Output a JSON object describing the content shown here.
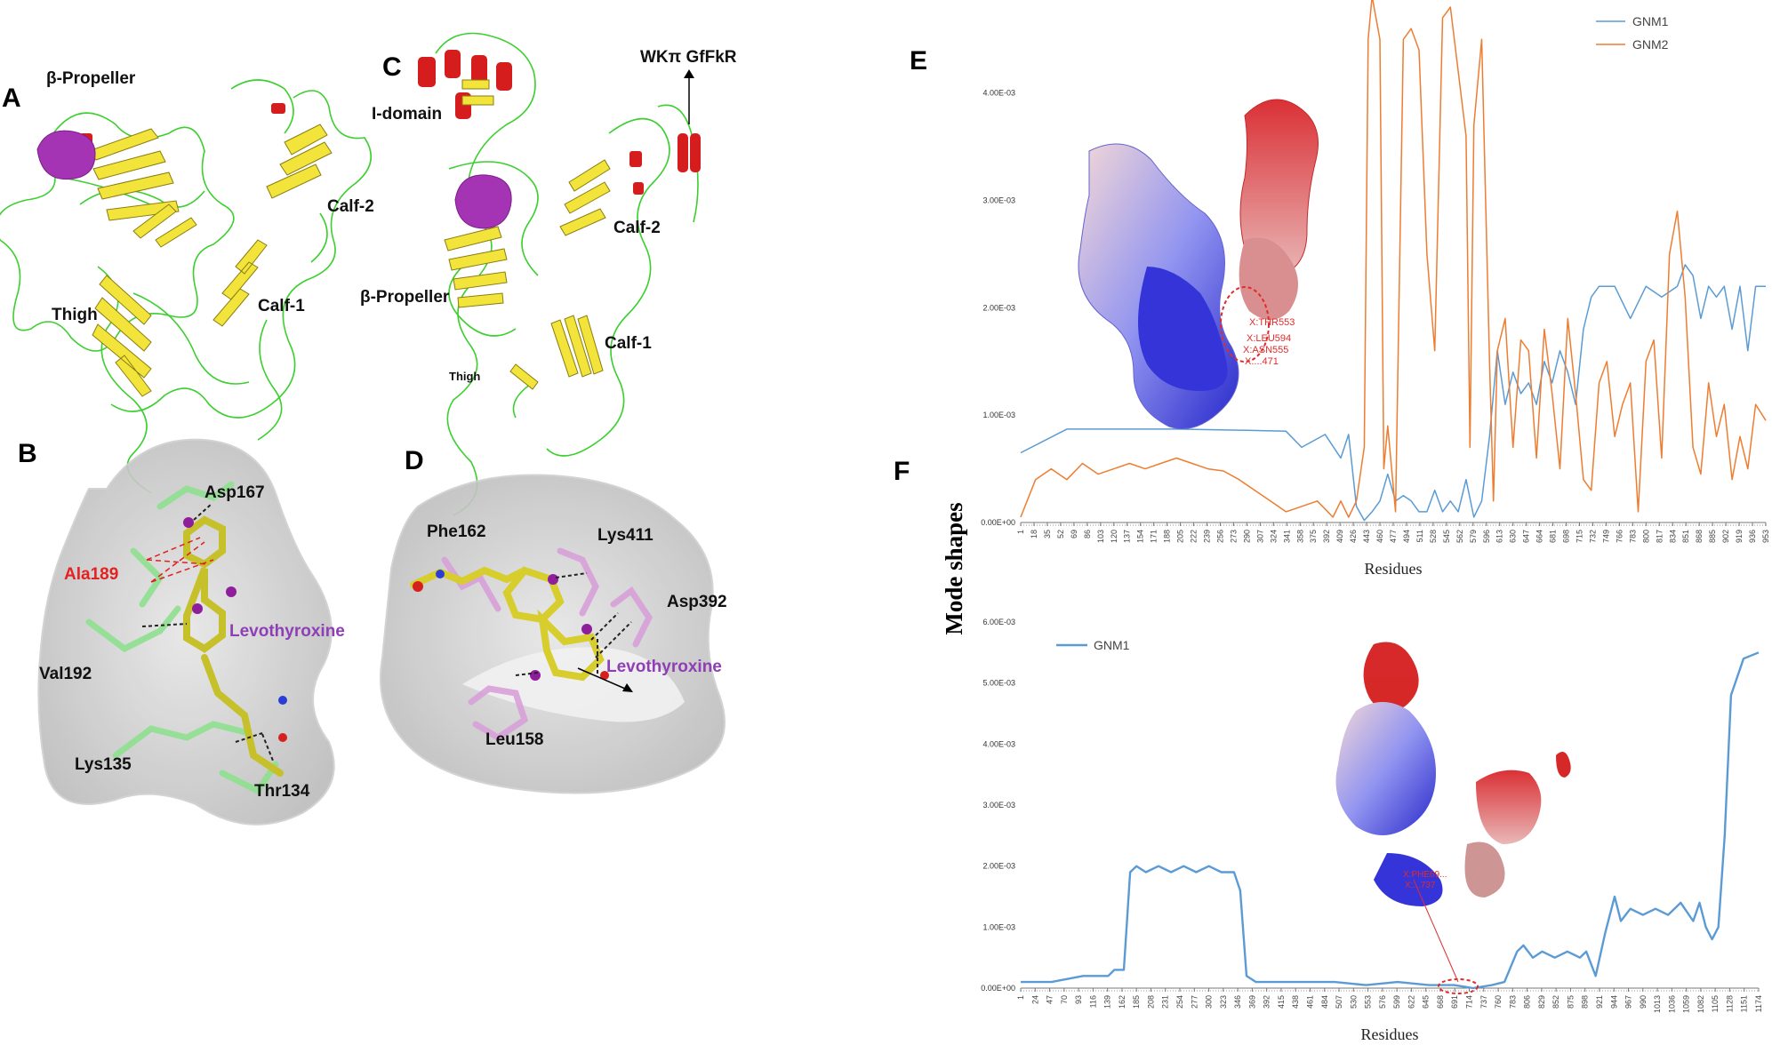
{
  "panels": {
    "A": {
      "letter": "A",
      "labels": {
        "propeller": "β-Propeller",
        "calf2": "Calf-2",
        "calf1": "Calf-1",
        "thigh": "Thigh"
      }
    },
    "B": {
      "letter": "B",
      "residues": {
        "asp167": "Asp167",
        "ala189": "Ala189",
        "val192": "Val192",
        "lys135": "Lys135",
        "thr134": "Thr134"
      },
      "ligand": "Levothyroxine"
    },
    "C": {
      "letter": "C",
      "labels": {
        "idomain": "I-domain",
        "motif": "WKπ GfFkR",
        "propeller": "β-Propeller",
        "calf2": "Calf-2",
        "calf1": "Calf-1",
        "thigh": "Thigh"
      }
    },
    "D": {
      "letter": "D",
      "residues": {
        "phe162": "Phe162",
        "lys411": "Lys411",
        "asp392": "Asp392",
        "leu158": "Leu158"
      },
      "ligand": "Levothyroxine"
    },
    "E": {
      "letter": "E",
      "annotations": [
        "X:THR553",
        "X:LEU594",
        "X:ASN555",
        "X:...471"
      ]
    },
    "F": {
      "letter": "F",
      "annotations": [
        "X:PHE69...",
        "X:...737"
      ]
    }
  },
  "shared_ylabel": "Mode shapes",
  "chart_data": [
    {
      "type": "line",
      "panel": "E",
      "xlabel": "Residues",
      "ylabel": "Mode shapes",
      "ylim": [
        0,
        0.0048
      ],
      "yticks": [
        "0.00E+00",
        "1.00E-03",
        "2.00E-03",
        "3.00E-03",
        "4.00E-03"
      ],
      "x_tick_labels": [
        "1",
        "18",
        "35",
        "52",
        "69",
        "86",
        "103",
        "120",
        "137",
        "154",
        "171",
        "188",
        "205",
        "222",
        "239",
        "256",
        "273",
        "290",
        "307",
        "324",
        "341",
        "358",
        "375",
        "392",
        "409",
        "426",
        "443",
        "460",
        "477",
        "494",
        "511",
        "528",
        "545",
        "562",
        "579",
        "596",
        "613",
        "630",
        "647",
        "664",
        "681",
        "698",
        "715",
        "732",
        "749",
        "766",
        "783",
        "800",
        "817",
        "834",
        "851",
        "868",
        "885",
        "902",
        "919",
        "936",
        "953"
      ],
      "legend": "top-right",
      "series": [
        {
          "name": "GNM1",
          "color": "#5b9bd5",
          "x": [
            1,
            60,
            120,
            200,
            280,
            340,
            360,
            390,
            410,
            420,
            430,
            440,
            450,
            460,
            470,
            480,
            490,
            500,
            510,
            520,
            530,
            540,
            550,
            560,
            570,
            580,
            590,
            600,
            610,
            620,
            630,
            640,
            650,
            660,
            670,
            680,
            690,
            700,
            710,
            720,
            730,
            740,
            760,
            780,
            800,
            820,
            840,
            850,
            860,
            870,
            880,
            890,
            900,
            910,
            920,
            930,
            940,
            953
          ],
          "y": [
            0.00065,
            0.00087,
            0.00087,
            0.00087,
            0.00086,
            0.00085,
            0.0007,
            0.00082,
            0.0006,
            0.00082,
            0.00015,
            2e-05,
            0.0001,
            0.0002,
            0.00045,
            0.0002,
            0.00025,
            0.0002,
            0.0001,
            0.0001,
            0.0003,
            0.0001,
            0.0002,
            0.0001,
            0.0004,
            5e-05,
            0.0002,
            0.0008,
            0.0016,
            0.0011,
            0.0014,
            0.0012,
            0.0013,
            0.0011,
            0.0015,
            0.0013,
            0.0016,
            0.0014,
            0.0011,
            0.0018,
            0.0021,
            0.0022,
            0.0022,
            0.0019,
            0.0022,
            0.0021,
            0.0022,
            0.0024,
            0.0023,
            0.0019,
            0.0022,
            0.0021,
            0.0022,
            0.0018,
            0.0022,
            0.0016,
            0.0022,
            0.0022
          ]
        },
        {
          "name": "GNM2",
          "color": "#ed7d31",
          "x": [
            1,
            20,
            40,
            60,
            80,
            100,
            120,
            140,
            160,
            180,
            200,
            220,
            240,
            260,
            280,
            300,
            320,
            340,
            360,
            380,
            400,
            410,
            420,
            430,
            440,
            445,
            450,
            460,
            465,
            470,
            480,
            490,
            500,
            510,
            520,
            530,
            540,
            550,
            560,
            570,
            575,
            580,
            590,
            600,
            605,
            610,
            620,
            630,
            640,
            650,
            660,
            670,
            680,
            690,
            700,
            710,
            720,
            730,
            740,
            750,
            760,
            770,
            780,
            790,
            800,
            810,
            820,
            830,
            840,
            850,
            860,
            870,
            880,
            890,
            900,
            910,
            920,
            930,
            940,
            953
          ],
          "y": [
            5e-05,
            0.0004,
            0.0005,
            0.0004,
            0.00055,
            0.00045,
            0.0005,
            0.00055,
            0.0005,
            0.00055,
            0.0006,
            0.00055,
            0.0005,
            0.00048,
            0.0004,
            0.0003,
            0.0002,
            0.0001,
            0.00015,
            0.0002,
            5e-05,
            0.0002,
            5e-05,
            0.0002,
            0.0007,
            0.0045,
            0.0049,
            0.0045,
            0.0005,
            0.0009,
            0.0001,
            0.0045,
            0.0046,
            0.0044,
            0.0025,
            0.0016,
            0.0047,
            0.0048,
            0.0042,
            0.0036,
            0.0007,
            0.0037,
            0.0045,
            0.0015,
            0.0002,
            0.0016,
            0.0019,
            0.0007,
            0.0017,
            0.0016,
            0.0006,
            0.0018,
            0.0012,
            0.0005,
            0.0019,
            0.0012,
            0.0004,
            0.0003,
            0.0013,
            0.0015,
            0.0008,
            0.0011,
            0.0013,
            0.0001,
            0.0015,
            0.0017,
            0.0006,
            0.0025,
            0.0029,
            0.0021,
            0.0007,
            0.00045,
            0.0013,
            0.0008,
            0.0011,
            0.0004,
            0.0008,
            0.0005,
            0.0011,
            0.00095
          ]
        }
      ]
    },
    {
      "type": "line",
      "panel": "F",
      "xlabel": "Residues",
      "ylabel": "Mode shapes",
      "ylim": [
        0,
        0.006
      ],
      "yticks": [
        "0.00E+00",
        "1.00E-03",
        "2.00E-03",
        "3.00E-03",
        "4.00E-03",
        "5.00E-03",
        "6.00E-03"
      ],
      "x_tick_labels": [
        "1",
        "24",
        "47",
        "70",
        "93",
        "116",
        "139",
        "162",
        "185",
        "208",
        "231",
        "254",
        "277",
        "300",
        "323",
        "346",
        "369",
        "392",
        "415",
        "438",
        "461",
        "484",
        "507",
        "530",
        "553",
        "576",
        "599",
        "622",
        "645",
        "668",
        "691",
        "714",
        "737",
        "760",
        "783",
        "806",
        "829",
        "852",
        "875",
        "898",
        "921",
        "944",
        "967",
        "990",
        "1013",
        "1036",
        "1059",
        "1082",
        "1105",
        "1128",
        "1151",
        "1174"
      ],
      "legend": "top-left",
      "series": [
        {
          "name": "GNM1",
          "color": "#5b9bd5",
          "x": [
            1,
            50,
            100,
            140,
            150,
            165,
            175,
            185,
            200,
            220,
            240,
            260,
            280,
            300,
            320,
            340,
            350,
            360,
            375,
            400,
            450,
            500,
            550,
            600,
            650,
            690,
            720,
            750,
            770,
            790,
            800,
            815,
            830,
            850,
            870,
            890,
            900,
            915,
            930,
            945,
            955,
            970,
            990,
            1010,
            1030,
            1050,
            1070,
            1080,
            1090,
            1100,
            1110,
            1120,
            1130,
            1150,
            1174
          ],
          "y": [
            0.0001,
            0.0001,
            0.0002,
            0.0002,
            0.0003,
            0.0003,
            0.0019,
            0.002,
            0.0019,
            0.002,
            0.0019,
            0.002,
            0.0019,
            0.002,
            0.0019,
            0.0019,
            0.0016,
            0.0002,
            0.0001,
            0.0001,
            0.0001,
            0.0001,
            5e-05,
            0.0001,
            5e-05,
            5e-05,
            0.0,
            5e-05,
            0.0001,
            0.0006,
            0.0007,
            0.0005,
            0.0006,
            0.0005,
            0.0006,
            0.0005,
            0.0006,
            0.0002,
            0.0009,
            0.0015,
            0.0011,
            0.0013,
            0.0012,
            0.0013,
            0.0012,
            0.0014,
            0.0011,
            0.0014,
            0.001,
            0.0008,
            0.001,
            0.0025,
            0.0048,
            0.0054,
            0.0055
          ]
        }
      ]
    }
  ]
}
